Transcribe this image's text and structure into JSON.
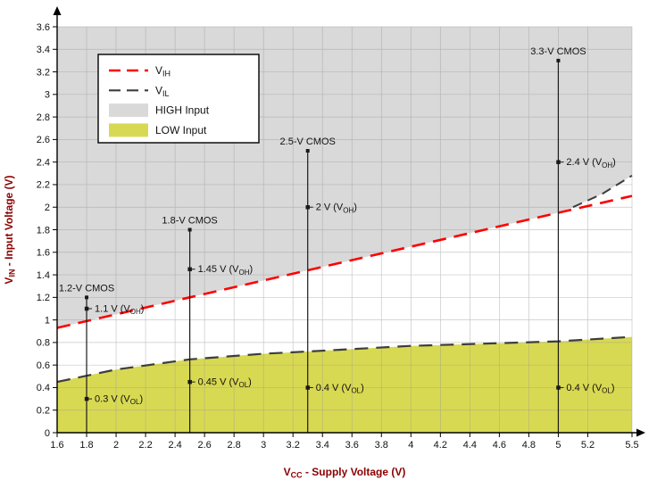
{
  "chart_data": {
    "type": "line",
    "title": "",
    "xlabel_parts": [
      "V",
      {
        "sub": "CC"
      },
      " - Supply Voltage (V)"
    ],
    "ylabel_parts": [
      "V",
      {
        "sub": "IN"
      },
      " - Input Voltage (V)"
    ],
    "xlim": [
      1.6,
      5.5
    ],
    "ylim": [
      0,
      3.6
    ],
    "grid": true,
    "legend_position": "top-left",
    "x_tick_values": [
      1.6,
      1.8,
      2,
      2.2,
      2.4,
      2.6,
      2.8,
      3,
      3.2,
      3.4,
      3.6,
      3.8,
      4,
      4.2,
      4.4,
      4.6,
      4.8,
      5,
      5.2,
      5.5
    ],
    "x_tick_labels": [
      "1.6",
      "1.8",
      "2",
      "2.2",
      "2.4",
      "2.6",
      "2.8",
      "3",
      "3.2",
      "3.4",
      "3.6",
      "3.8",
      "4",
      "4.2",
      "4.4",
      "4.6",
      "4.8",
      "5",
      "5.2",
      "5.5"
    ],
    "y_tick_values": [
      0,
      0.2,
      0.4,
      0.6,
      0.8,
      1,
      1.2,
      1.4,
      1.6,
      1.8,
      2,
      2.2,
      2.4,
      2.6,
      2.8,
      3,
      3.2,
      3.4,
      3.6
    ],
    "y_tick_labels": [
      "0",
      "0.2",
      "0.4",
      "0.6",
      "0.8",
      "1",
      "1.2",
      "1.4",
      "1.6",
      "1.8",
      "2",
      "2.2",
      "2.4",
      "2.6",
      "2.8",
      "3",
      "3.2",
      "3.4",
      "3.6"
    ],
    "colors": {
      "high_region": "#d9d9d9",
      "low_region": "#d8d952",
      "vih": "#ff0000",
      "vil": "#3d3d3d",
      "axis_label": "#8b0000",
      "device_line": "#1a1a1a"
    },
    "series": [
      {
        "name": "VIH",
        "label_parts": [
          "V",
          {
            "sub": "IH"
          }
        ],
        "color_key": "vih",
        "points": [
          [
            1.6,
            0.93
          ],
          [
            2.0,
            1.05
          ],
          [
            2.5,
            1.2
          ],
          [
            3.0,
            1.35
          ],
          [
            3.5,
            1.5
          ],
          [
            4.0,
            1.65
          ],
          [
            4.5,
            1.8
          ],
          [
            5.0,
            1.95
          ],
          [
            5.5,
            2.1
          ]
        ]
      },
      {
        "name": "VIL",
        "label_parts": [
          "V",
          {
            "sub": "IL"
          }
        ],
        "color_key": "vil",
        "points": [
          [
            1.6,
            0.45
          ],
          [
            2.0,
            0.56
          ],
          [
            2.5,
            0.65
          ],
          [
            3.0,
            0.7
          ],
          [
            3.3,
            0.72
          ],
          [
            4.0,
            0.77
          ],
          [
            4.5,
            0.79
          ],
          [
            5.0,
            0.81
          ],
          [
            5.5,
            0.85
          ]
        ]
      }
    ],
    "high_region_boundary": [
      [
        1.6,
        0.93
      ],
      [
        2.0,
        1.05
      ],
      [
        2.5,
        1.2
      ],
      [
        3.0,
        1.35
      ],
      [
        3.5,
        1.5
      ],
      [
        4.0,
        1.65
      ],
      [
        4.5,
        1.8
      ],
      [
        5.0,
        1.95
      ],
      [
        5.1,
        2.0
      ],
      [
        5.3,
        2.12
      ],
      [
        5.5,
        2.28
      ]
    ],
    "boundary_tail": [
      [
        5.1,
        2.0
      ],
      [
        5.3,
        2.12
      ],
      [
        5.5,
        2.28
      ]
    ],
    "legend": [
      {
        "type": "line",
        "color_key": "vih",
        "label_parts": [
          "V",
          {
            "sub": "IH"
          }
        ]
      },
      {
        "type": "line",
        "color_key": "vil",
        "label_parts": [
          "V",
          {
            "sub": "IL"
          }
        ]
      },
      {
        "type": "swatch",
        "color_key": "high_region",
        "label_parts": [
          "HIGH Input"
        ]
      },
      {
        "type": "swatch",
        "color_key": "low_region",
        "label_parts": [
          "LOW Input"
        ]
      }
    ],
    "device_lines": [
      {
        "x": 1.8,
        "top": 1.2,
        "name_label": "1.2-V CMOS",
        "points": [
          {
            "y": 1.1,
            "label_parts": [
              "1.1 V (V",
              {
                "sub": "OH"
              },
              ")"
            ]
          },
          {
            "y": 0.3,
            "label_parts": [
              "0.3 V (V",
              {
                "sub": "OL"
              },
              ")"
            ]
          }
        ]
      },
      {
        "x": 2.5,
        "top": 1.8,
        "name_label": "1.8-V CMOS",
        "points": [
          {
            "y": 1.45,
            "label_parts": [
              "1.45 V (V",
              {
                "sub": "OH"
              },
              ")"
            ]
          },
          {
            "y": 0.45,
            "label_parts": [
              "0.45 V (V",
              {
                "sub": "OL"
              },
              ")"
            ]
          }
        ]
      },
      {
        "x": 3.3,
        "top": 2.5,
        "name_label": "2.5-V CMOS",
        "points": [
          {
            "y": 2.0,
            "label_parts": [
              "2 V (V",
              {
                "sub": "OH"
              },
              ")"
            ]
          },
          {
            "y": 0.4,
            "label_parts": [
              "0.4 V (V",
              {
                "sub": "OL"
              },
              ")"
            ]
          }
        ]
      },
      {
        "x": 5.0,
        "top": 3.3,
        "name_label": "3.3-V CMOS",
        "points": [
          {
            "y": 2.4,
            "label_parts": [
              "2.4 V (V",
              {
                "sub": "OH"
              },
              ")"
            ]
          },
          {
            "y": 0.4,
            "label_parts": [
              "0.4 V (V",
              {
                "sub": "OL"
              },
              ")"
            ]
          }
        ]
      }
    ]
  }
}
